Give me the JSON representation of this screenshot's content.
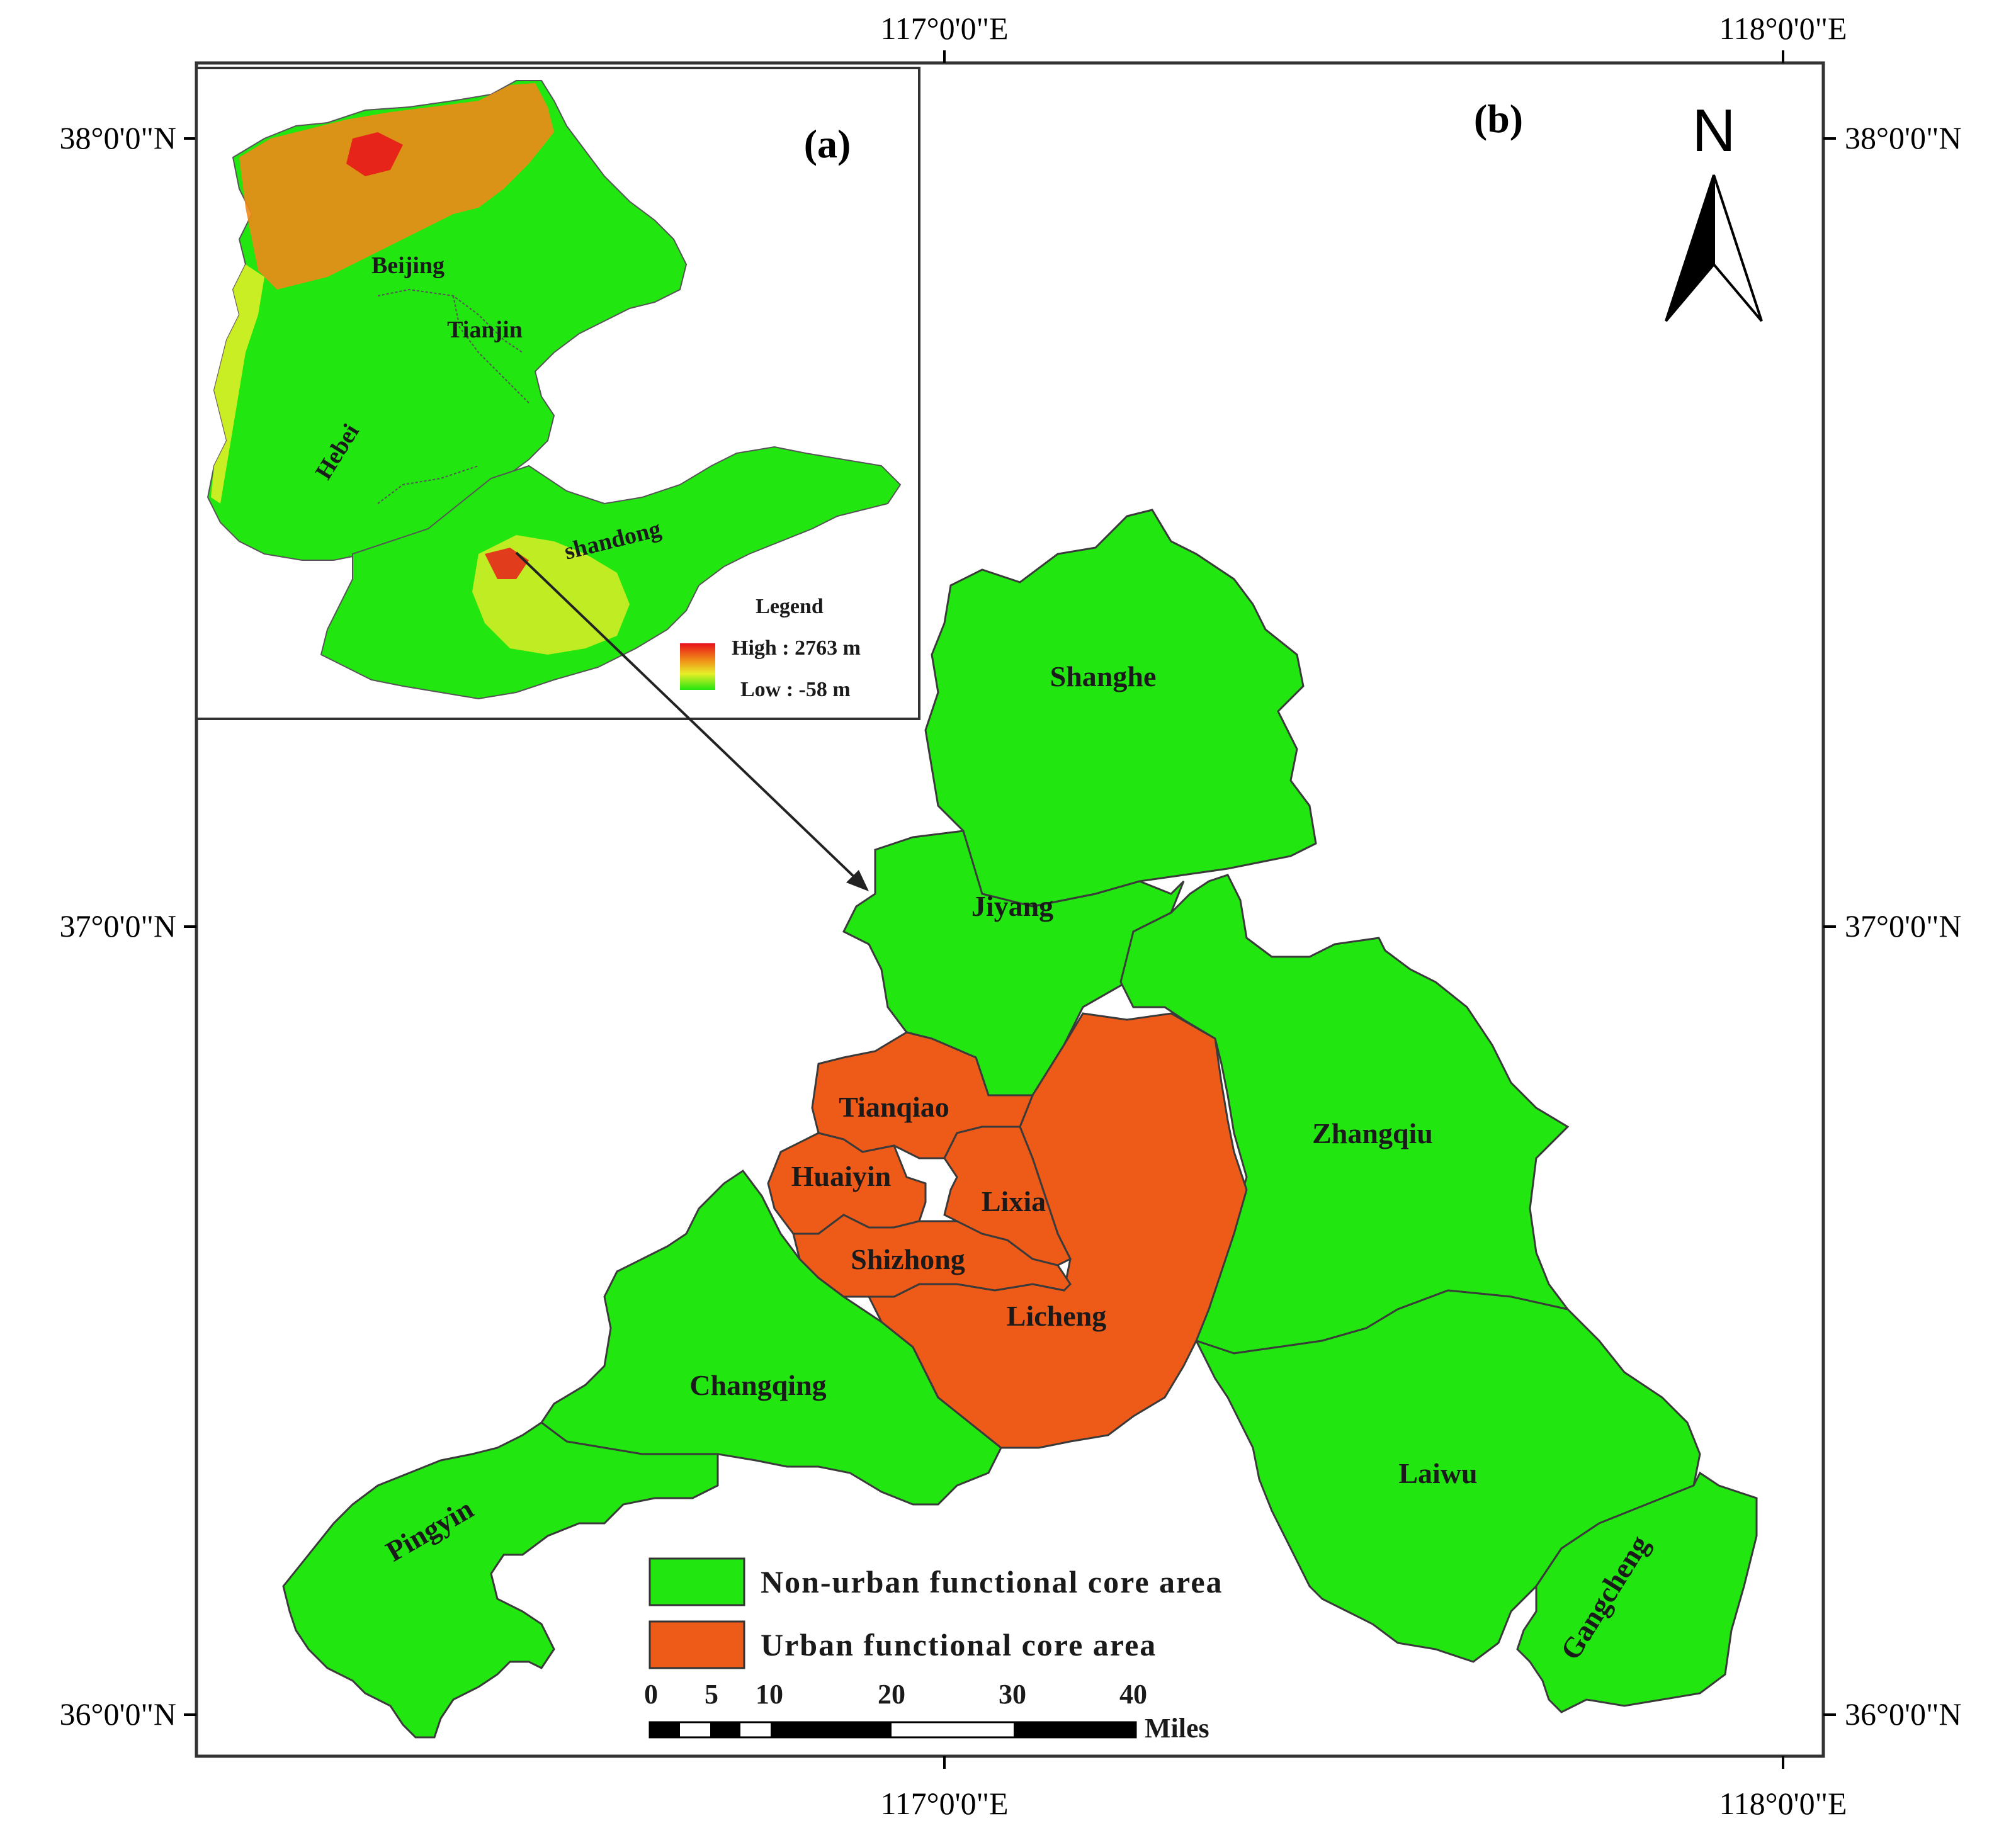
{
  "panels": {
    "main": "(b)",
    "inset": "(a)"
  },
  "coordinates": {
    "top": [
      "117°0'0\"E",
      "118°0'0\"E"
    ],
    "bottom": [
      "117°0'0\"E",
      "118°0'0\"E"
    ],
    "left": [
      "38°0'0\"N",
      "37°0'0\"N",
      "36°0'0\"N"
    ],
    "right": [
      "38°0'0\"N",
      "37°0'0\"N",
      "36°0'0\"N"
    ]
  },
  "north_label": "N",
  "districts": {
    "shanghe": "Shanghe",
    "jiyang": "Jiyang",
    "zhangqiu": "Zhangqiu",
    "tianqiao": "Tianqiao",
    "huaiyin": "Huaiyin",
    "lixia": "Lixia",
    "shizhong": "Shizhong",
    "licheng": "Licheng",
    "changqing": "Changqing",
    "pingyin": "Pingyin",
    "laiwu": "Laiwu",
    "gangcheng": "Gangcheng"
  },
  "inset": {
    "provinces": {
      "beijing": "Beijing",
      "tianjin": "Tianjin",
      "hebei": "Hebei",
      "shandong": "shandong"
    },
    "legend_title": "Legend",
    "legend_high": "High : 2763 m",
    "legend_low": "Low : -58 m"
  },
  "legend": {
    "non_urban": {
      "label": "Non-urban functional core area",
      "color": "#22e60f"
    },
    "urban": {
      "label": "Urban functional core area",
      "color": "#ee5a18"
    }
  },
  "scale": {
    "ticks": [
      "0",
      "5",
      "10",
      "20",
      "30",
      "40"
    ],
    "unit": "Miles"
  }
}
